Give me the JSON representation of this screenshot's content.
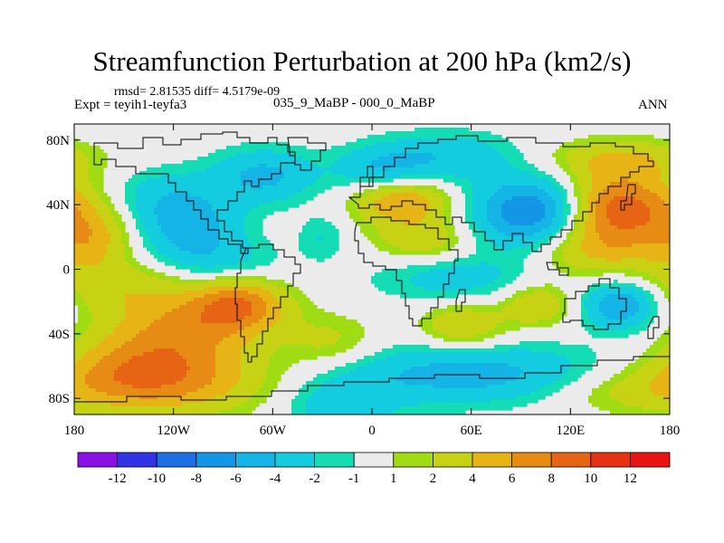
{
  "chart_data": {
    "type": "heatmap",
    "title": "Streamfunction Perturbation at 200 hPa (km2/s)",
    "stats_text": "rmsd= 2.81535 diff= 4.5179e-09",
    "experiment_text": "Expt = teyih1-teyfa3",
    "period_text": "035_9_MaBP - 000_0_MaBP",
    "season_text": "ANN",
    "x_range": [
      -180,
      180
    ],
    "y_range": [
      -90,
      90
    ],
    "x_ticks": [
      {
        "value": -180,
        "label": "180"
      },
      {
        "value": -120,
        "label": "120W"
      },
      {
        "value": -60,
        "label": "60W"
      },
      {
        "value": 0,
        "label": "0"
      },
      {
        "value": 60,
        "label": "60E"
      },
      {
        "value": 120,
        "label": "120E"
      },
      {
        "value": 180,
        "label": "180"
      }
    ],
    "y_ticks": [
      {
        "value": 80,
        "label": "80N"
      },
      {
        "value": 40,
        "label": "40N"
      },
      {
        "value": 0,
        "label": "0"
      },
      {
        "value": -40,
        "label": "40S"
      },
      {
        "value": -80,
        "label": "80S"
      }
    ],
    "colorbar": {
      "boundaries": [
        "-12",
        "-10",
        "-8",
        "-6",
        "-4",
        "-2",
        "-1",
        "1",
        "2",
        "4",
        "6",
        "8",
        "10",
        "12"
      ],
      "colors": [
        "#8a10e6",
        "#3232e6",
        "#1e6ee6",
        "#1496e6",
        "#14b4e6",
        "#14cce0",
        "#14dcb4",
        "#ebebeb",
        "#a0dc14",
        "#c8d214",
        "#e6b414",
        "#e68c14",
        "#e66414",
        "#e63214",
        "#e61414"
      ]
    },
    "field_centers": [
      {
        "lon": -170,
        "lat": 20,
        "value": 4.5,
        "sx": 18,
        "sy": 14
      },
      {
        "lon": -115,
        "lat": -38,
        "value": 6,
        "sx": 32,
        "sy": 16
      },
      {
        "lon": -80,
        "lat": -22,
        "value": 7,
        "sx": 20,
        "sy": 11
      },
      {
        "lon": -155,
        "lat": -10,
        "value": 3,
        "sx": 30,
        "sy": 12
      },
      {
        "lon": -125,
        "lat": -70,
        "value": 6,
        "sx": 45,
        "sy": 14
      },
      {
        "lon": -150,
        "lat": -60,
        "value": 3,
        "sx": 30,
        "sy": 14
      },
      {
        "lon": -110,
        "lat": 25,
        "value": -4.5,
        "sx": 22,
        "sy": 13
      },
      {
        "lon": -125,
        "lat": 45,
        "value": -3,
        "sx": 25,
        "sy": 13
      },
      {
        "lon": -65,
        "lat": 58,
        "value": -4.5,
        "sx": 22,
        "sy": 12
      },
      {
        "lon": -95,
        "lat": 5,
        "value": -2.5,
        "sx": 28,
        "sy": 10
      },
      {
        "lon": -30,
        "lat": 20,
        "value": -2,
        "sx": 10,
        "sy": 10
      },
      {
        "lon": 18,
        "lat": 42,
        "value": 6,
        "sx": 20,
        "sy": 10
      },
      {
        "lon": 5,
        "lat": 62,
        "value": -3.5,
        "sx": 20,
        "sy": 10
      },
      {
        "lon": 45,
        "lat": 70,
        "value": -3.5,
        "sx": 30,
        "sy": 11
      },
      {
        "lon": 30,
        "lat": 18,
        "value": 3.5,
        "sx": 20,
        "sy": 10
      },
      {
        "lon": 95,
        "lat": 35,
        "value": -8,
        "sx": 24,
        "sy": 15
      },
      {
        "lon": 145,
        "lat": 38,
        "value": 8,
        "sx": 20,
        "sy": 15
      },
      {
        "lon": 150,
        "lat": 68,
        "value": 4,
        "sx": 30,
        "sy": 9
      },
      {
        "lon": 135,
        "lat": 12,
        "value": 4,
        "sx": 28,
        "sy": 12
      },
      {
        "lon": 150,
        "lat": -22,
        "value": -6,
        "sx": 16,
        "sy": 11
      },
      {
        "lon": 100,
        "lat": -22,
        "value": 4,
        "sx": 15,
        "sy": 9
      },
      {
        "lon": 50,
        "lat": -5,
        "value": -3,
        "sx": 35,
        "sy": 11
      },
      {
        "lon": 55,
        "lat": -35,
        "value": 4,
        "sx": 18,
        "sy": 10
      },
      {
        "lon": 60,
        "lat": -65,
        "value": -5,
        "sx": 60,
        "sy": 13
      },
      {
        "lon": -20,
        "lat": -85,
        "value": -3,
        "sx": 25,
        "sy": 12
      },
      {
        "lon": -25,
        "lat": -45,
        "value": 2.5,
        "sx": 20,
        "sy": 12
      },
      {
        "lon": 150,
        "lat": -75,
        "value": 2.5,
        "sx": 35,
        "sy": 10
      },
      {
        "lon": 175,
        "lat": 40,
        "value": 3,
        "sx": 20,
        "sy": 14
      }
    ]
  }
}
